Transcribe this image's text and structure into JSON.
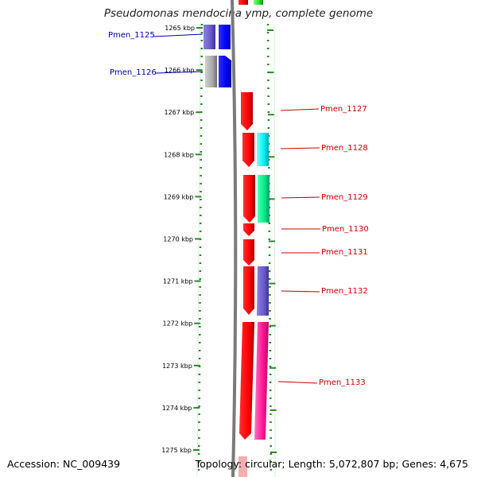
{
  "header": {
    "title": "Pseudomonas mendocina ymp, complete genome"
  },
  "footer": {
    "accession": "Accession: NC_009439",
    "topology": "Topology: circular; Length: 5,072,807 bp; Genes: 4,675"
  },
  "colors": {
    "backbone": "#7a7a7a",
    "scale_ticks": "#2a8a2a",
    "label_left": "#0000aa",
    "label_right": "#cc0000"
  },
  "scale": {
    "unit": "kbp",
    "ticks": [
      "1265 kbp",
      "1266 kbp",
      "1267 kbp",
      "1268 kbp",
      "1269 kbp",
      "1270 kbp",
      "1271 kbp",
      "1272 kbp",
      "1273 kbp",
      "1274 kbp",
      "1275 kbp"
    ]
  },
  "gene_labels": [
    {
      "name": "Pmen_1125",
      "side": "left"
    },
    {
      "name": "Pmen_1126",
      "side": "left"
    },
    {
      "name": "Pmen_1127",
      "side": "right"
    },
    {
      "name": "Pmen_1128",
      "side": "right"
    },
    {
      "name": "Pmen_1129",
      "side": "right"
    },
    {
      "name": "Pmen_1130",
      "side": "right"
    },
    {
      "name": "Pmen_1131",
      "side": "right"
    },
    {
      "name": "Pmen_1132",
      "side": "right"
    },
    {
      "name": "Pmen_1133",
      "side": "right"
    }
  ]
}
